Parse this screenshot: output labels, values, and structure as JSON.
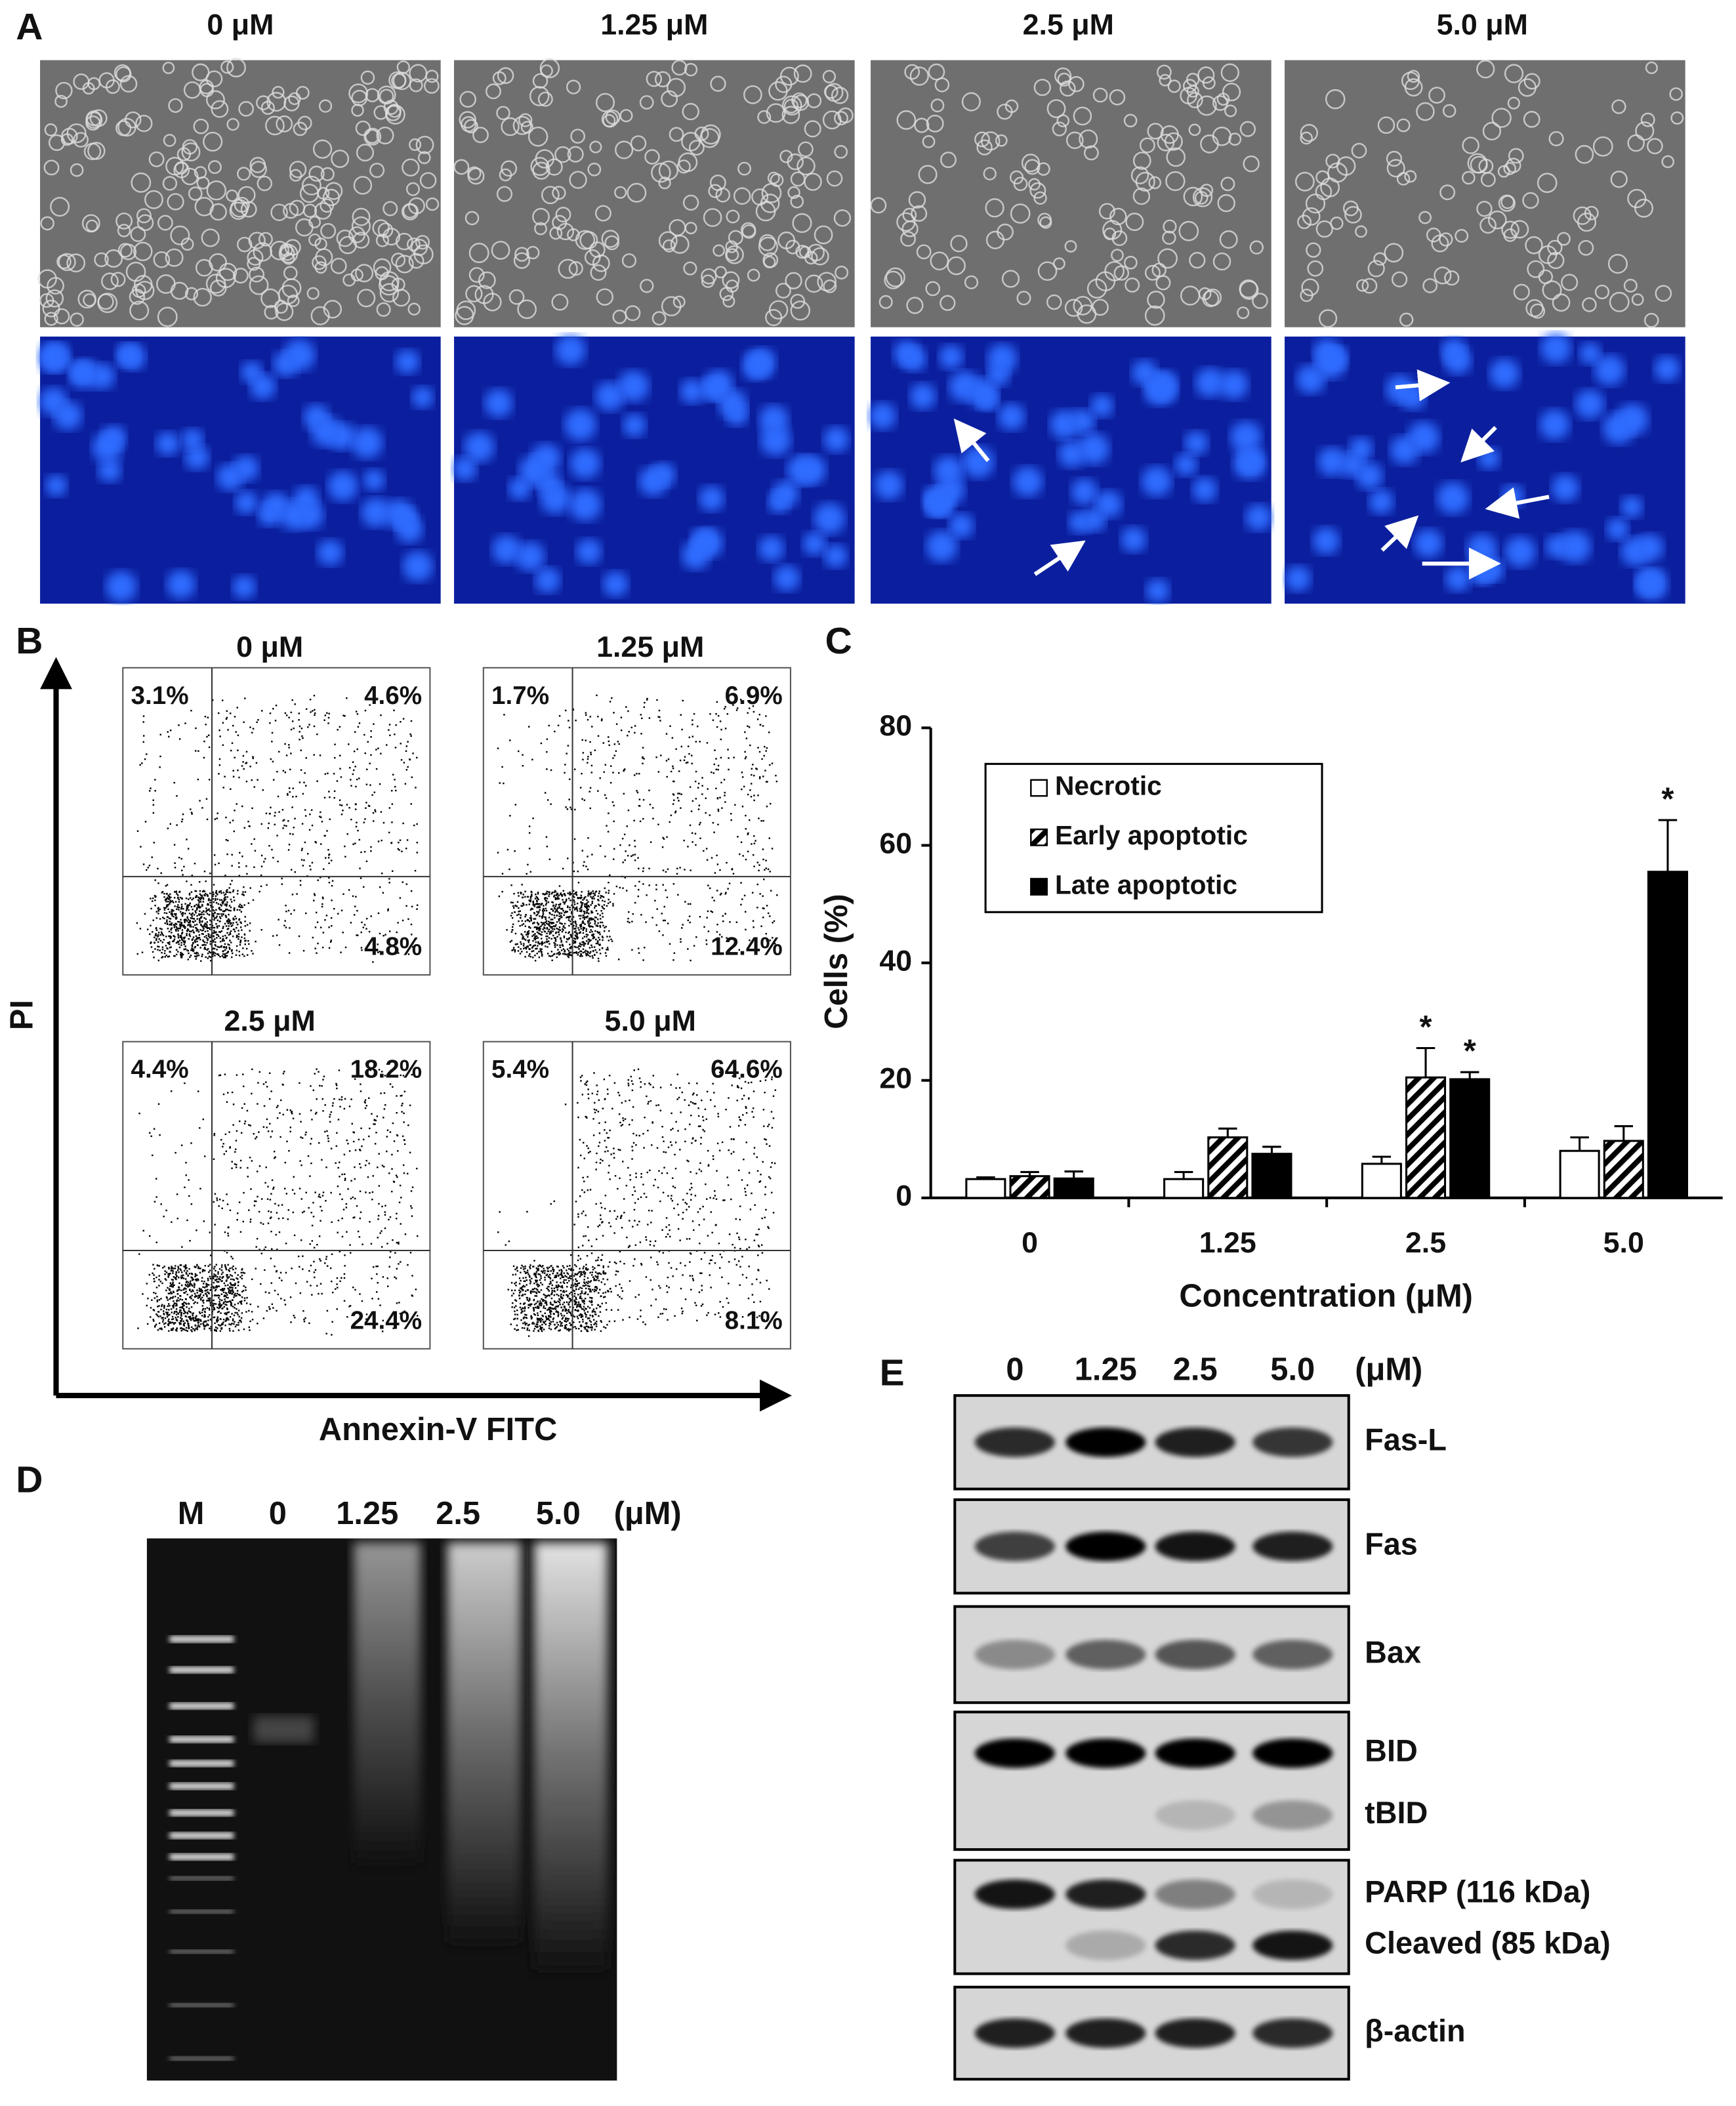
{
  "panel_labels": [
    "A",
    "B",
    "C",
    "D",
    "E"
  ],
  "panel_a": {
    "concentrations": [
      "0 μM",
      "1.25 μM",
      "2.5 μM",
      "5.0 μM"
    ]
  },
  "panel_b": {
    "y_label": "PI",
    "x_label": "Annexin-V FITC",
    "plots": [
      {
        "title": "0 μM",
        "upper_left": "3.1%",
        "upper_right": "4.6%",
        "lower_right": "4.8%"
      },
      {
        "title": "1.25 μM",
        "upper_left": "1.7%",
        "upper_right": "6.9%",
        "lower_right": "12.4%"
      },
      {
        "title": "2.5 μM",
        "upper_left": "4.4%",
        "upper_right": "18.2%",
        "lower_right": "24.4%"
      },
      {
        "title": "5.0 μM",
        "upper_left": "5.4%",
        "upper_right": "64.6%",
        "lower_right": "8.1%"
      }
    ]
  },
  "chart_data": {
    "type": "bar",
    "y_label": "Cells (%)",
    "x_label": "Concentration (μM)",
    "categories": [
      "0",
      "1.25",
      "2.5",
      "5.0"
    ],
    "series": [
      {
        "name": "Necrotic",
        "color": "#ffffff",
        "hatch": false,
        "values": [
          3.2,
          3.2,
          5.8,
          8.0
        ],
        "errors": [
          0.3,
          1.2,
          1.2,
          2.3
        ],
        "markers": [
          null,
          null,
          null,
          null
        ]
      },
      {
        "name": "Early apoptotic",
        "color": "#ffffff",
        "hatch": true,
        "values": [
          3.7,
          10.3,
          20.5,
          9.7
        ],
        "errors": [
          0.7,
          1.5,
          5.0,
          2.5
        ],
        "markers": [
          null,
          null,
          "*",
          null
        ]
      },
      {
        "name": "Late apoptotic",
        "color": "#000000",
        "hatch": false,
        "values": [
          3.3,
          7.5,
          20.2,
          55.5
        ],
        "errors": [
          1.2,
          1.2,
          1.2,
          8.8
        ],
        "markers": [
          null,
          null,
          "*",
          "*"
        ]
      }
    ],
    "ylim": [
      0,
      80
    ],
    "yticks": [
      0,
      20,
      40,
      60,
      80
    ],
    "legend": "upper left"
  },
  "panel_d": {
    "lanes": [
      "M",
      "0",
      "1.25",
      "2.5",
      "5.0"
    ],
    "unit": "(μM)"
  },
  "panel_e": {
    "lanes": [
      "0",
      "1.25",
      "2.5",
      "5.0"
    ],
    "unit": "(μM)",
    "blots": [
      {
        "labels": [
          "Fas-L"
        ]
      },
      {
        "labels": [
          "Fas"
        ]
      },
      {
        "labels": [
          "Bax"
        ]
      },
      {
        "labels": [
          "BID",
          "tBID"
        ]
      },
      {
        "labels": [
          "PARP (116 kDa)",
          "Cleaved (85 kDa)"
        ]
      },
      {
        "labels": [
          "β-actin"
        ]
      }
    ]
  }
}
